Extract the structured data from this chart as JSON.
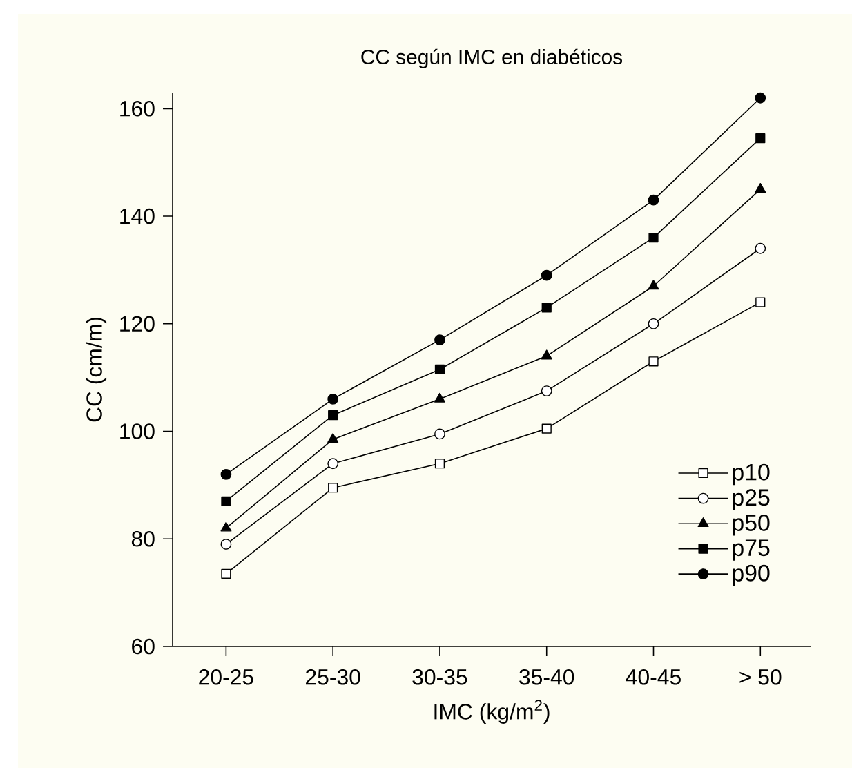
{
  "chart_data": {
    "type": "line",
    "title": "CC según IMC en diabéticos",
    "xlabel": "IMC (kg/m$^{2}$)",
    "ylabel": "CC (cm/m)",
    "categories": [
      "20-25",
      "25-30",
      "30-35",
      "35-40",
      "40-45",
      "> 50"
    ],
    "series": [
      {
        "name": "p10",
        "color": "#000000",
        "marker": "square-open",
        "values": [
          73.5,
          89.5,
          94,
          100.5,
          113,
          124
        ]
      },
      {
        "name": "p25",
        "color": "#000000",
        "marker": "circle-open",
        "values": [
          79,
          94,
          99.5,
          107.5,
          120,
          134
        ]
      },
      {
        "name": "p50",
        "color": "#000000",
        "marker": "triangle",
        "values": [
          82,
          98.5,
          106,
          114,
          127,
          145
        ]
      },
      {
        "name": "p75",
        "color": "#000000",
        "marker": "square",
        "values": [
          87,
          103,
          111.5,
          123,
          136,
          154.5
        ]
      },
      {
        "name": "p90",
        "color": "#000000",
        "marker": "circle",
        "values": [
          92,
          106,
          117,
          129,
          143,
          162
        ]
      }
    ],
    "ylim": [
      60,
      163
    ],
    "yticks": [
      60,
      80,
      100,
      120,
      140,
      160
    ],
    "grid": false,
    "legend": "right",
    "line_style": "solid"
  }
}
